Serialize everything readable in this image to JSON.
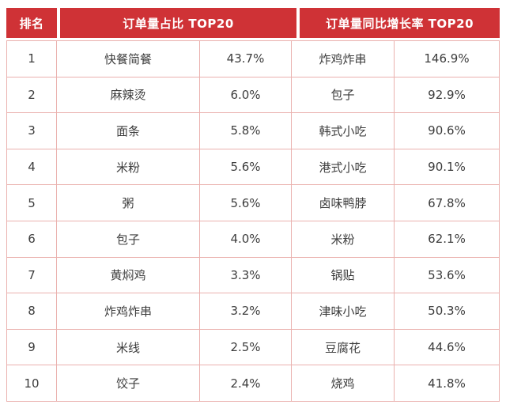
{
  "colors": {
    "header_bg": "#cf3236",
    "header_text": "#ffffff",
    "grid_border": "#eab1ae",
    "body_text": "#3d3d3d",
    "page_bg": "#ffffff"
  },
  "header": {
    "rank": "排名",
    "share": "订单量占比 TOP20",
    "growth": "订单量同比增长率 TOP20"
  },
  "rows": [
    {
      "rank": "1",
      "share_name": "快餐简餐",
      "share_value": "43.7%",
      "growth_name": "炸鸡炸串",
      "growth_value": "146.9%"
    },
    {
      "rank": "2",
      "share_name": "麻辣烫",
      "share_value": "6.0%",
      "growth_name": "包子",
      "growth_value": "92.9%"
    },
    {
      "rank": "3",
      "share_name": "面条",
      "share_value": "5.8%",
      "growth_name": "韩式小吃",
      "growth_value": "90.6%"
    },
    {
      "rank": "4",
      "share_name": "米粉",
      "share_value": "5.6%",
      "growth_name": "港式小吃",
      "growth_value": "90.1%"
    },
    {
      "rank": "5",
      "share_name": "粥",
      "share_value": "5.6%",
      "growth_name": "卤味鸭脖",
      "growth_value": "67.8%"
    },
    {
      "rank": "6",
      "share_name": "包子",
      "share_value": "4.0%",
      "growth_name": "米粉",
      "growth_value": "62.1%"
    },
    {
      "rank": "7",
      "share_name": "黄焖鸡",
      "share_value": "3.3%",
      "growth_name": "锅贴",
      "growth_value": "53.6%"
    },
    {
      "rank": "8",
      "share_name": "炸鸡炸串",
      "share_value": "3.2%",
      "growth_name": "津味小吃",
      "growth_value": "50.3%"
    },
    {
      "rank": "9",
      "share_name": "米线",
      "share_value": "2.5%",
      "growth_name": "豆腐花",
      "growth_value": "44.6%"
    },
    {
      "rank": "10",
      "share_name": "饺子",
      "share_value": "2.4%",
      "growth_name": "烧鸡",
      "growth_value": "41.8%"
    }
  ],
  "chart_data": {
    "type": "table",
    "title": "",
    "columns": [
      "排名",
      "订单量占比 TOP20 品类",
      "订单量占比",
      "订单量同比增长率 TOP20 品类",
      "订单量同比增长率"
    ],
    "series": [
      {
        "name": "订单量占比 TOP20",
        "categories": [
          "快餐简餐",
          "麻辣烫",
          "面条",
          "米粉",
          "粥",
          "包子",
          "黄焖鸡",
          "炸鸡炸串",
          "米线",
          "饺子"
        ],
        "values": [
          43.7,
          6.0,
          5.8,
          5.6,
          5.6,
          4.0,
          3.3,
          3.2,
          2.5,
          2.4
        ],
        "unit": "%"
      },
      {
        "name": "订单量同比增长率 TOP20",
        "categories": [
          "炸鸡炸串",
          "包子",
          "韩式小吃",
          "港式小吃",
          "卤味鸭脖",
          "米粉",
          "锅贴",
          "津味小吃",
          "豆腐花",
          "烧鸡"
        ],
        "values": [
          146.9,
          92.9,
          90.6,
          90.1,
          67.8,
          62.1,
          53.6,
          50.3,
          44.6,
          41.8
        ],
        "unit": "%"
      }
    ]
  }
}
